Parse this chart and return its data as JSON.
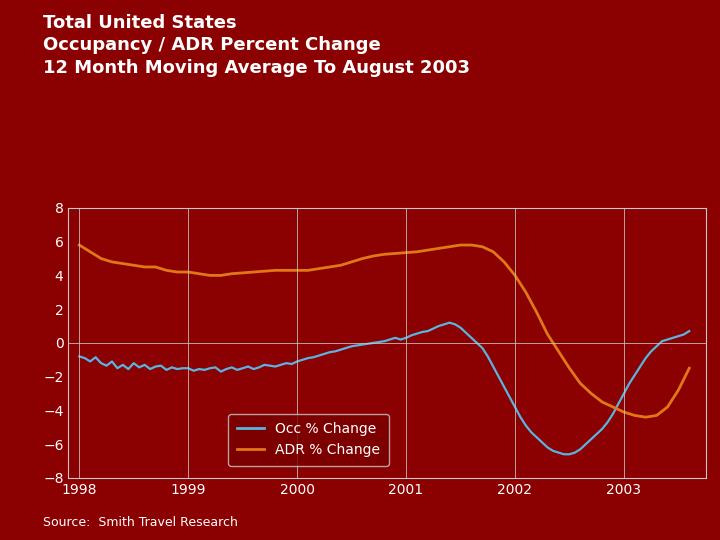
{
  "title": "Total United States\nOccupancy / ADR Percent Change\n12 Month Moving Average To August 2003",
  "source": "Source:  Smith Travel Research",
  "background_color": "#8B0000",
  "plot_bg_color": "#8B0000",
  "occ_color": "#5ab4e0",
  "adr_color": "#e07818",
  "grid_color": "#c8c8c8",
  "text_color": "#ffffff",
  "ylim": [
    -8,
    8
  ],
  "yticks": [
    -8,
    -6,
    -4,
    -2,
    0,
    2,
    4,
    6,
    8
  ],
  "xtick_labels": [
    "1998",
    "1999",
    "2000",
    "2001",
    "2002",
    "2003"
  ],
  "legend_labels": [
    "Occ % Change",
    "ADR % Change"
  ],
  "occ_x": [
    0.0,
    0.05,
    0.1,
    0.15,
    0.2,
    0.25,
    0.3,
    0.35,
    0.4,
    0.45,
    0.5,
    0.55,
    0.6,
    0.65,
    0.7,
    0.75,
    0.8,
    0.85,
    0.9,
    0.95,
    1.0,
    1.05,
    1.1,
    1.15,
    1.2,
    1.25,
    1.3,
    1.35,
    1.4,
    1.45,
    1.5,
    1.55,
    1.6,
    1.65,
    1.7,
    1.75,
    1.8,
    1.85,
    1.9,
    1.95,
    2.0,
    2.05,
    2.1,
    2.15,
    2.2,
    2.25,
    2.3,
    2.35,
    2.4,
    2.45,
    2.5,
    2.55,
    2.6,
    2.65,
    2.7,
    2.75,
    2.8,
    2.85,
    2.9,
    2.95,
    3.0,
    3.05,
    3.1,
    3.15,
    3.2,
    3.25,
    3.3,
    3.35,
    3.4,
    3.45,
    3.5,
    3.55,
    3.6,
    3.65,
    3.7,
    3.75,
    3.8,
    3.85,
    3.9,
    3.95,
    4.0,
    4.05,
    4.1,
    4.15,
    4.2,
    4.25,
    4.3,
    4.35,
    4.4,
    4.45,
    4.5,
    4.55,
    4.6,
    4.65,
    4.7,
    4.75,
    4.8,
    4.85,
    4.9,
    4.95,
    5.0,
    5.05,
    5.1,
    5.15,
    5.2,
    5.25,
    5.3,
    5.35,
    5.4,
    5.45,
    5.5,
    5.55,
    5.6
  ],
  "occ_y": [
    -0.8,
    -0.9,
    -1.1,
    -0.85,
    -1.2,
    -1.35,
    -1.1,
    -1.5,
    -1.3,
    -1.55,
    -1.2,
    -1.45,
    -1.3,
    -1.55,
    -1.4,
    -1.35,
    -1.6,
    -1.45,
    -1.55,
    -1.5,
    -1.5,
    -1.65,
    -1.55,
    -1.6,
    -1.5,
    -1.45,
    -1.7,
    -1.55,
    -1.45,
    -1.6,
    -1.5,
    -1.4,
    -1.55,
    -1.45,
    -1.3,
    -1.35,
    -1.4,
    -1.3,
    -1.2,
    -1.25,
    -1.1,
    -1.0,
    -0.9,
    -0.85,
    -0.75,
    -0.65,
    -0.55,
    -0.5,
    -0.4,
    -0.3,
    -0.2,
    -0.15,
    -0.1,
    -0.05,
    0.0,
    0.05,
    0.1,
    0.2,
    0.3,
    0.2,
    0.3,
    0.45,
    0.55,
    0.65,
    0.7,
    0.85,
    1.0,
    1.1,
    1.2,
    1.1,
    0.9,
    0.6,
    0.3,
    0.0,
    -0.3,
    -0.8,
    -1.4,
    -2.0,
    -2.6,
    -3.2,
    -3.8,
    -4.4,
    -4.9,
    -5.3,
    -5.6,
    -5.9,
    -6.2,
    -6.4,
    -6.5,
    -6.6,
    -6.6,
    -6.5,
    -6.3,
    -6.0,
    -5.7,
    -5.4,
    -5.1,
    -4.7,
    -4.2,
    -3.6,
    -3.0,
    -2.4,
    -1.9,
    -1.4,
    -0.9,
    -0.5,
    -0.2,
    0.1,
    0.2,
    0.3,
    0.4,
    0.5,
    0.7
  ],
  "adr_x": [
    0.0,
    0.1,
    0.2,
    0.3,
    0.4,
    0.5,
    0.6,
    0.7,
    0.8,
    0.9,
    1.0,
    1.1,
    1.2,
    1.3,
    1.4,
    1.5,
    1.6,
    1.7,
    1.8,
    1.9,
    2.0,
    2.1,
    2.2,
    2.3,
    2.4,
    2.5,
    2.6,
    2.7,
    2.8,
    2.9,
    3.0,
    3.1,
    3.2,
    3.3,
    3.4,
    3.5,
    3.6,
    3.7,
    3.8,
    3.9,
    4.0,
    4.1,
    4.2,
    4.3,
    4.4,
    4.5,
    4.6,
    4.7,
    4.8,
    4.9,
    5.0,
    5.1,
    5.2,
    5.3,
    5.4,
    5.5,
    5.6
  ],
  "adr_y": [
    5.8,
    5.4,
    5.0,
    4.8,
    4.7,
    4.6,
    4.5,
    4.5,
    4.3,
    4.2,
    4.2,
    4.1,
    4.0,
    4.0,
    4.1,
    4.15,
    4.2,
    4.25,
    4.3,
    4.3,
    4.3,
    4.3,
    4.4,
    4.5,
    4.6,
    4.8,
    5.0,
    5.15,
    5.25,
    5.3,
    5.35,
    5.4,
    5.5,
    5.6,
    5.7,
    5.8,
    5.8,
    5.7,
    5.4,
    4.8,
    4.0,
    3.0,
    1.8,
    0.5,
    -0.5,
    -1.5,
    -2.4,
    -3.0,
    -3.5,
    -3.8,
    -4.1,
    -4.3,
    -4.4,
    -4.3,
    -3.8,
    -2.8,
    -1.5
  ],
  "legend_box_color": "#7a0000",
  "xlim_min": -0.1,
  "xlim_max": 5.75
}
